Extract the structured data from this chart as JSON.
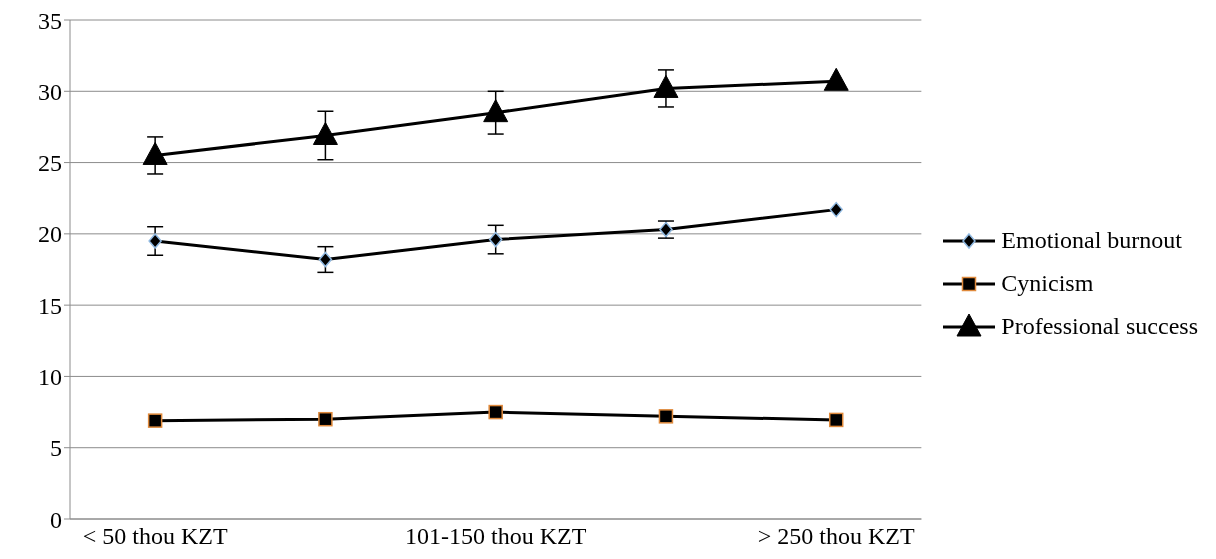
{
  "chart_data": {
    "type": "line",
    "categories": [
      "< 50 thou KZT",
      null,
      "101-150 thou KZT",
      null,
      "> 250 thou KZT"
    ],
    "series": [
      {
        "name": "Emotional burnout",
        "color": "#000000",
        "marker": "diamond",
        "values": [
          19.5,
          18.2,
          19.6,
          20.3,
          21.7
        ],
        "errors": [
          1.0,
          0.9,
          1.0,
          0.6,
          null
        ]
      },
      {
        "name": "Cynicism",
        "color": "#000000",
        "marker": "square",
        "values": [
          6.9,
          7.0,
          7.5,
          7.2,
          6.95
        ]
      },
      {
        "name": "Professional success",
        "color": "#000000",
        "marker": "triangle",
        "values": [
          25.5,
          26.9,
          28.5,
          30.2,
          30.7
        ],
        "errors": [
          1.3,
          1.7,
          1.5,
          1.3,
          null
        ]
      }
    ],
    "ylim": [
      0,
      35
    ],
    "yticks": [
      0,
      5,
      10,
      15,
      20,
      25,
      30,
      35
    ],
    "grid": "y",
    "legend": "right",
    "line_style": "solid"
  }
}
